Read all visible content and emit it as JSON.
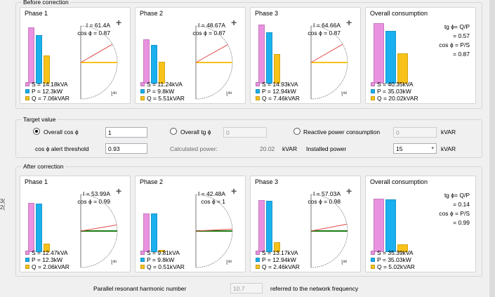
{
  "sections": {
    "before": "Before correction",
    "target": "Target value",
    "after": "After correction"
  },
  "before": {
    "phases": [
      {
        "title": "Phase 1",
        "current": "I = 61.4A",
        "cos": "cos ϕ = 0.87",
        "S": "S = 14.18kVA",
        "P": "P = 12.3kW",
        "Q": "Q = 7.06kVAR",
        "bars": {
          "S": 14.18,
          "P": 12.3,
          "Q": 7.06
        }
      },
      {
        "title": "Phase 2",
        "current": "I = 48.67A",
        "cos": "cos ϕ = 0.87",
        "S": "S = 11.24kVA",
        "P": "P = 9.8kW",
        "Q": "Q = 5.51kVAR",
        "bars": {
          "S": 11.24,
          "P": 9.8,
          "Q": 5.51
        }
      },
      {
        "title": "Phase 3",
        "current": "I = 64.66A",
        "cos": "cos ϕ = 0.87",
        "S": "S = 14.93kVA",
        "P": "P = 12.94kW",
        "Q": "Q = 7.46kVAR",
        "bars": {
          "S": 14.93,
          "P": 12.94,
          "Q": 7.46
        }
      }
    ],
    "overall": {
      "title": "Overall consumption",
      "tg_label": "tg ϕ= Q/P",
      "tg_value": "= 0.57",
      "cos_label": "cos ϕ = P/S",
      "cos_value": "= 0.87",
      "S": "S = 40.35kVA",
      "P": "P = 35.03kW",
      "Q": "Q = 20.02kVAR",
      "bars": {
        "S": 40.35,
        "P": 35.03,
        "Q": 20.02
      }
    }
  },
  "target": {
    "overall_cos_label": "Overall cos ϕ",
    "overall_cos_value": "1",
    "overall_tg_label": "Overall tg ϕ",
    "overall_tg_value": "0",
    "reactive_label": "Reactive power consumption",
    "reactive_value": "0",
    "reactive_unit": "kVAR",
    "alert_label": "cos ϕ alert threshold",
    "alert_value": "0.93",
    "calc_label": "Calculated power:",
    "calc_value": "20.02",
    "calc_unit": "kVAR",
    "installed_label": "Installed power",
    "installed_value": "15",
    "installed_unit": "kVAR"
  },
  "after": {
    "phases": [
      {
        "title": "Phase 1",
        "current": "I = 53.99A",
        "cos": "cos ϕ = 0.99",
        "S": "S = 12.47kVA",
        "P": "P = 12.3kW",
        "Q": "Q = 2.06kVAR",
        "bars": {
          "S": 12.47,
          "P": 12.3,
          "Q": 2.06
        }
      },
      {
        "title": "Phase 2",
        "current": "I = 42.48A",
        "cos": "cos ϕ = 1",
        "S": "S = 9.81kVA",
        "P": "P = 9.8kW",
        "Q": "Q = 0.51kVAR",
        "bars": {
          "S": 9.81,
          "P": 9.8,
          "Q": 0.51
        }
      },
      {
        "title": "Phase 3",
        "current": "I = 57.03A",
        "cos": "cos ϕ = 0.98",
        "S": "S = 13.17kVA",
        "P": "P = 12.94kW",
        "Q": "Q = 2.46kVAR",
        "bars": {
          "S": 13.17,
          "P": 12.94,
          "Q": 2.46
        }
      }
    ],
    "overall": {
      "title": "Overall consumption",
      "tg_label": "tg ϕ= Q/P",
      "tg_value": "= 0.14",
      "cos_label": "cos ϕ = P/S",
      "cos_value": "= 0.99",
      "S": "S = 35.39kVA",
      "P": "P = 35.03kW",
      "Q": "Q = 5.02kVAR",
      "bars": {
        "S": 35.39,
        "P": 35.03,
        "Q": 5.02
      }
    }
  },
  "footer": {
    "label": "Parallel resonant harmonic number",
    "value": "10.7",
    "suffix": "referred to the network frequency"
  },
  "edge": {
    "left_top": "3(",
    "left_bottom": "2("
  },
  "colors": {
    "S": "#e992e0",
    "P": "#1ab0ef",
    "Q": "#f8c21a",
    "before_line": "#e04848",
    "after_line": "#1a7a12",
    "p_line": "#f8c21a"
  }
}
